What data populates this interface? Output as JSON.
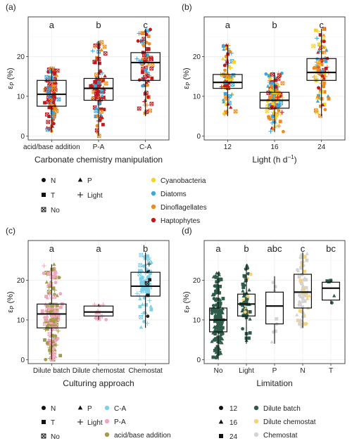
{
  "chart_data": [
    {
      "type": "box",
      "panel_label": "(a)",
      "ylabel": "ε_P (%)",
      "xlabel": "Carbonate chemistry manipulation",
      "ylim": [
        -1,
        30
      ],
      "yticks": [
        0,
        10,
        20
      ],
      "grid": true,
      "categories": [
        "acid/base addition",
        "P-A",
        "C-A"
      ],
      "letters": [
        "a",
        "b",
        "c"
      ],
      "boxes": [
        {
          "q1": 7.5,
          "median": 10.5,
          "q3": 14,
          "whisker_low": 1,
          "whisker_high": 17
        },
        {
          "q1": 9,
          "median": 12,
          "q3": 14.5,
          "whisker_low": 0,
          "whisker_high": 24
        },
        {
          "q1": 14,
          "median": 18.5,
          "q3": 21,
          "whisker_low": 5,
          "whisker_high": 27
        }
      ]
    },
    {
      "type": "box",
      "panel_label": "(b)",
      "ylabel": "ε_P (%)",
      "xlabel": "Light (h d",
      "xlabel_sup": "−1",
      "xlabel_end": ")",
      "ylim": [
        -1,
        30
      ],
      "yticks": [
        0,
        10,
        20
      ],
      "grid": true,
      "categories": [
        "12",
        "16",
        "24"
      ],
      "letters": [
        "a",
        "b",
        "c"
      ],
      "boxes": [
        {
          "q1": 12,
          "median": 13.5,
          "q3": 15.5,
          "whisker_low": 5,
          "whisker_high": 23
        },
        {
          "q1": 7,
          "median": 9,
          "q3": 11,
          "whisker_low": 1,
          "whisker_high": 16
        },
        {
          "q1": 14,
          "median": 16,
          "q3": 19.5,
          "whisker_low": 5,
          "whisker_high": 27
        }
      ]
    },
    {
      "type": "box",
      "panel_label": "(c)",
      "ylabel": "ε_P (%)",
      "xlabel": "Culturing approach",
      "ylim": [
        -1,
        30
      ],
      "yticks": [
        0,
        10,
        20
      ],
      "grid": true,
      "categories": [
        "Dilute batch",
        "Dilute chemostat",
        "Chemostat"
      ],
      "letters": [
        "a",
        "a",
        "b"
      ],
      "boxes": [
        {
          "q1": 8,
          "median": 11.5,
          "q3": 14,
          "whisker_low": 0,
          "whisker_high": 24
        },
        {
          "q1": 11,
          "median": 12,
          "q3": 13.5,
          "whisker_low": 10,
          "whisker_high": 14
        },
        {
          "q1": 16,
          "median": 18.5,
          "q3": 22,
          "whisker_low": 8,
          "whisker_high": 27
        }
      ]
    },
    {
      "type": "box",
      "panel_label": "(d)",
      "ylabel": "ε_P (%)",
      "xlabel": "Limitation",
      "ylim": [
        -1,
        30
      ],
      "yticks": [
        0,
        10,
        20
      ],
      "grid": true,
      "categories": [
        "No",
        "Light",
        "P",
        "N",
        "T"
      ],
      "letters": [
        "a",
        "b",
        "abc",
        "c",
        "bc"
      ],
      "boxes": [
        {
          "q1": 7,
          "median": 10,
          "q3": 13,
          "whisker_low": 0,
          "whisker_high": 22
        },
        {
          "q1": 11,
          "median": 14,
          "q3": 16.5,
          "whisker_low": 4,
          "whisker_high": 24
        },
        {
          "q1": 9,
          "median": 13.5,
          "q3": 17,
          "whisker_low": 4,
          "whisker_high": 21
        },
        {
          "q1": 13,
          "median": 17,
          "q3": 21.5,
          "whisker_low": 8,
          "whisker_high": 27
        },
        {
          "q1": 15,
          "median": 18,
          "q3": 19.5,
          "whisker_low": 14,
          "whisker_high": 20
        }
      ]
    }
  ],
  "legend_ab": {
    "shapes": [
      {
        "symbol": "circle",
        "label": "N"
      },
      {
        "symbol": "triangle",
        "label": "P"
      },
      {
        "symbol": "square",
        "label": "T"
      },
      {
        "symbol": "plus",
        "label": "Light"
      },
      {
        "symbol": "boxx",
        "label": "No"
      }
    ],
    "colors": [
      {
        "label": "Cyanobacteria",
        "color": "#f5d224"
      },
      {
        "label": "Diatoms",
        "color": "#3aa6dc"
      },
      {
        "label": "Dinoflagellates",
        "color": "#ee8a1e"
      },
      {
        "label": "Haptophytes",
        "color": "#c0181e"
      }
    ]
  },
  "legend_c": {
    "shapes": [
      {
        "symbol": "circle",
        "label": "N"
      },
      {
        "symbol": "triangle",
        "label": "P"
      },
      {
        "symbol": "square",
        "label": "T"
      },
      {
        "symbol": "plus",
        "label": "Light"
      },
      {
        "symbol": "boxx",
        "label": "No"
      }
    ],
    "colors": [
      {
        "label": "C-A",
        "color": "#7ecfe8"
      },
      {
        "label": "P-A",
        "color": "#f2a6bb"
      },
      {
        "label": "acid/base addition",
        "color": "#a39a4a"
      }
    ]
  },
  "legend_d": {
    "shapes": [
      {
        "symbol": "circle",
        "label": "12"
      },
      {
        "symbol": "triangle",
        "label": "16"
      },
      {
        "symbol": "square",
        "label": "24"
      }
    ],
    "colors": [
      {
        "label": "Dilute batch",
        "color": "#2f5c4a"
      },
      {
        "label": "Dilute chemostat",
        "color": "#f5d27a"
      },
      {
        "label": "Chemostat",
        "color": "#d3d3d3"
      }
    ]
  }
}
